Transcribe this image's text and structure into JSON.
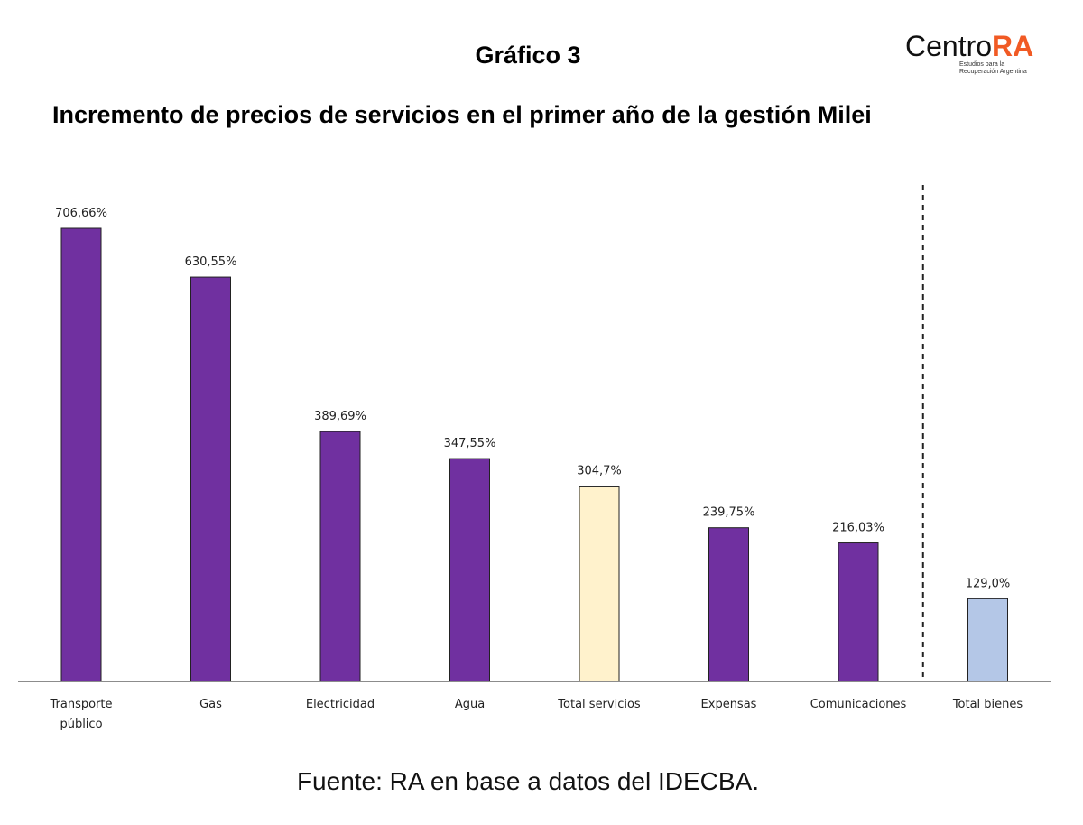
{
  "header": {
    "graph_number": "Gráfico 3",
    "title": "Incremento de precios de servicios en el primer año de la gestión Milei"
  },
  "logo": {
    "text_a": "Centro",
    "text_b": "RA",
    "tagline_1": "Estudios para la",
    "tagline_2": "Recuperación Argentina"
  },
  "source": "Fuente: RA en base a datos del IDECBA.",
  "chart_data": {
    "type": "bar",
    "categories": [
      "Transporte público",
      "Gas",
      "Electricidad",
      "Agua",
      "Total servicios",
      "Expensas",
      "Comunicaciones",
      "Total bienes"
    ],
    "values": [
      706.66,
      630.55,
      389.69,
      347.55,
      304.7,
      239.75,
      216.03,
      129.0
    ],
    "data_labels": [
      "706,66%",
      "630,55%",
      "389,69%",
      "347,55%",
      "304,7%",
      "239,75%",
      "216,03%",
      "129,0%"
    ],
    "bar_colors": [
      "#7030a0",
      "#7030a0",
      "#7030a0",
      "#7030a0",
      "#fff2cc",
      "#7030a0",
      "#7030a0",
      "#b4c7e7"
    ],
    "ylim": [
      0,
      706.66
    ],
    "grid": false,
    "separator_before_category": "Total bienes",
    "title": "Incremento de precios de servicios en el primer año de la gestión Milei"
  }
}
